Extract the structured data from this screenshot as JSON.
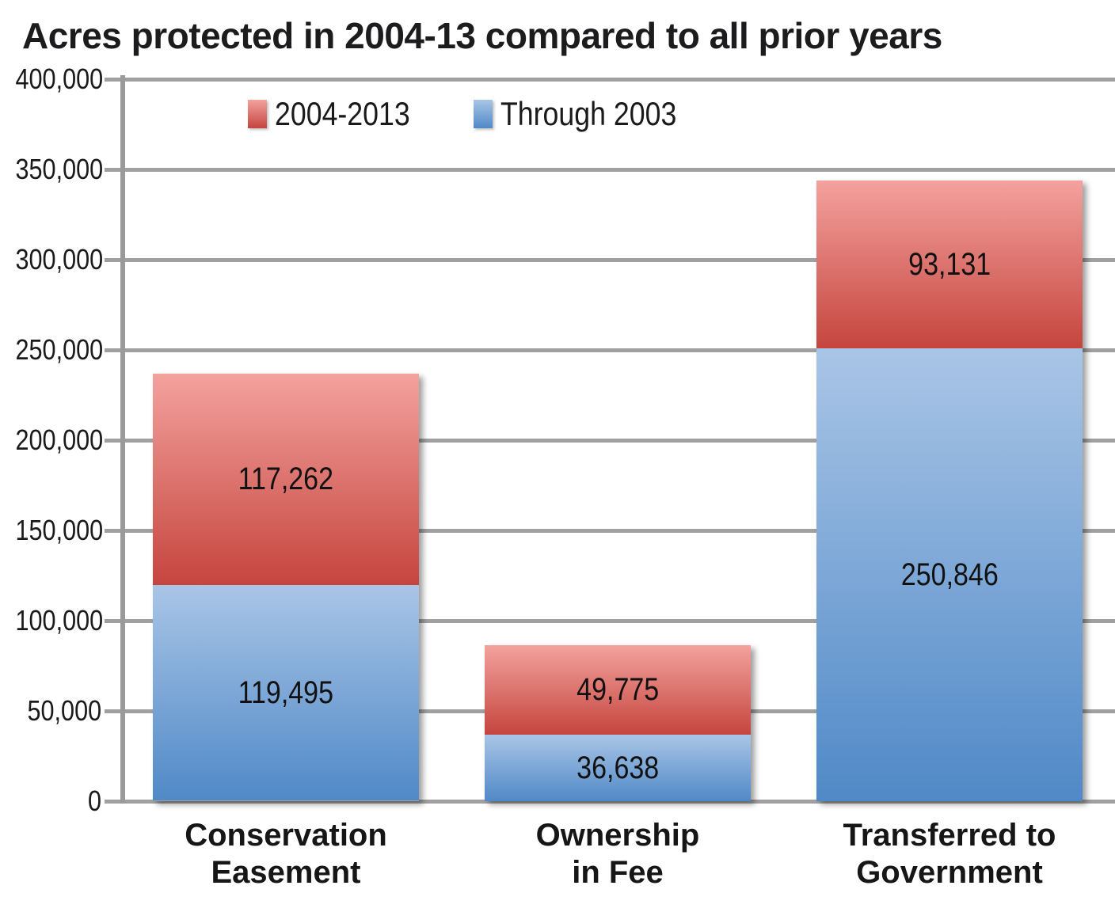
{
  "chart_data": {
    "type": "bar",
    "stacked": true,
    "title": "Acres protected in 2004-13 compared to all prior years",
    "categories": [
      "Conservation Easement",
      "Ownership in Fee",
      "Transferred to Government"
    ],
    "category_label_lines": [
      "Conservation\nEasement",
      "Ownership\nin Fee",
      "Transferred to\nGovernment"
    ],
    "series": [
      {
        "name": "2004-2013",
        "stack_position": "top",
        "color_top": "#F3A29E",
        "color_bottom": "#C5453E",
        "values": [
          117262,
          49775,
          93131
        ]
      },
      {
        "name": "Through 2003",
        "stack_position": "bottom",
        "color_top": "#A9C5E6",
        "color_bottom": "#5089C7",
        "values": [
          119495,
          36638,
          250846
        ]
      }
    ],
    "ylim": [
      0,
      400000
    ],
    "ytick_step": 50000,
    "ytick_labels": [
      "0",
      "50,000",
      "100,000",
      "150,000",
      "200,000",
      "250,000",
      "300,000",
      "350,000",
      "400,000"
    ],
    "xlabel": "",
    "ylabel": "",
    "grid": "on",
    "legend_position": "top-left-inside",
    "colors": {
      "gridline": "#A0A0A0",
      "axis": "#9A9A9A",
      "text": "#1A1A1A"
    }
  }
}
